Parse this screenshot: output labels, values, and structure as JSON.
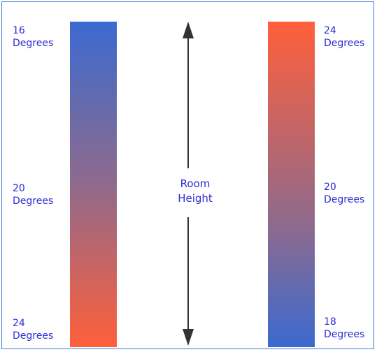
{
  "colors": {
    "cool": "#3b6ad0",
    "warm": "#ff5f3a",
    "mid": "#8f6a8c",
    "text": "#2b2bd6",
    "border": "#3a7bd5"
  },
  "left_scale": {
    "top": {
      "value": "16",
      "unit": "Degrees"
    },
    "middle": {
      "value": "20",
      "unit": "Degrees"
    },
    "bottom": {
      "value": "24",
      "unit": "Degrees"
    }
  },
  "right_scale": {
    "top": {
      "value": "24",
      "unit": "Degrees"
    },
    "middle": {
      "value": "20",
      "unit": "Degrees"
    },
    "bottom": {
      "value": "18",
      "unit": "Degrees"
    }
  },
  "center": {
    "line1": "Room",
    "line2": "Height"
  },
  "icons": {
    "axis": "double-arrow-icon"
  }
}
